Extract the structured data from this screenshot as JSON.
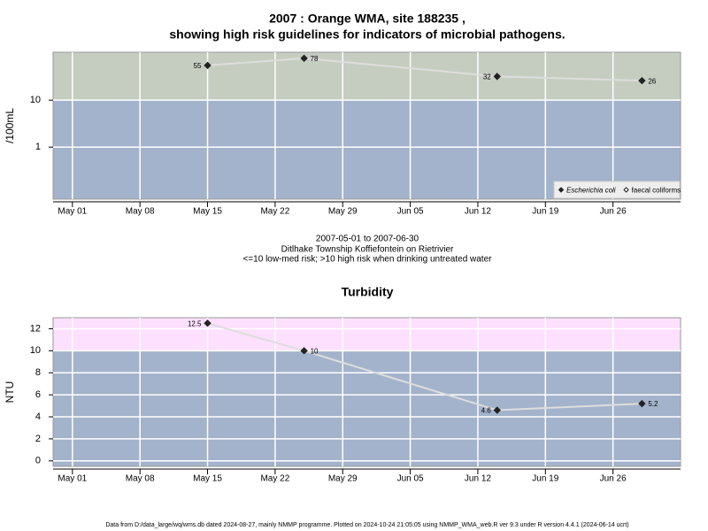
{
  "title": [
    "2007 : Orange WMA, site 188235 ,",
    "showing high risk guidelines for indicators of microbial pathogens."
  ],
  "notes": [
    "2007-05-01 to 2007-06-30",
    "Ditlhake Township Koffiefontein on Rietrivier",
    "<=10 low-med risk; >10 high risk when drinking untreated water"
  ],
  "footer": "Data from D:/data_large/wq/wms.db dated 2024-08-27, mainly NMMP programme. Plotted on 2024-10-24 21:05:05 using NMMP_WMA_web.R ver 9.3 under R version 4.4.1 (2024-06-14 ucrt)",
  "chart_data": [
    {
      "type": "line",
      "ylabel": "/100mL",
      "log_scale": true,
      "x": [
        "2007-05-15",
        "2007-05-25",
        "2007-06-14",
        "2007-06-29"
      ],
      "xlim": [
        "2007-04-29",
        "2007-07-03"
      ],
      "xticks": [
        {
          "value": "2007-05-01",
          "label": "May 01"
        },
        {
          "value": "2007-05-08",
          "label": "May 08"
        },
        {
          "value": "2007-05-15",
          "label": "May 15"
        },
        {
          "value": "2007-05-22",
          "label": "May 22"
        },
        {
          "value": "2007-05-29",
          "label": "May 29"
        },
        {
          "value": "2007-06-05",
          "label": "Jun 05"
        },
        {
          "value": "2007-06-12",
          "label": "Jun 12"
        },
        {
          "value": "2007-06-19",
          "label": "Jun 19"
        },
        {
          "value": "2007-06-26",
          "label": "Jun 26"
        }
      ],
      "ylim": [
        0.078,
        105
      ],
      "yticks": [
        1,
        10
      ],
      "grid": true,
      "threshold": 10,
      "band_colors": {
        "low": "#a3b3cb",
        "high": "#c5cdc1"
      },
      "line_color": "#dddddd",
      "legend": "bottom-right",
      "series": [
        {
          "name": "Escherichia coli",
          "color": "#222222",
          "marker": "filled",
          "values": [
            55,
            78,
            32,
            26
          ]
        },
        {
          "name": "faecal coliforms",
          "color": "#222222",
          "marker": "open",
          "values": [
            null,
            null,
            null,
            null
          ]
        }
      ]
    },
    {
      "type": "line",
      "title": "Turbidity",
      "ylabel": "NTU",
      "x": [
        "2007-05-15",
        "2007-05-25",
        "2007-06-14",
        "2007-06-29"
      ],
      "xlim": [
        "2007-04-29",
        "2007-07-03"
      ],
      "xticks": [
        {
          "value": "2007-05-01",
          "label": "May 01"
        },
        {
          "value": "2007-05-08",
          "label": "May 08"
        },
        {
          "value": "2007-05-15",
          "label": "May 15"
        },
        {
          "value": "2007-05-22",
          "label": "May 22"
        },
        {
          "value": "2007-05-29",
          "label": "May 29"
        },
        {
          "value": "2007-06-05",
          "label": "Jun 05"
        },
        {
          "value": "2007-06-12",
          "label": "Jun 12"
        },
        {
          "value": "2007-06-19",
          "label": "Jun 19"
        },
        {
          "value": "2007-06-26",
          "label": "Jun 26"
        }
      ],
      "ylim": [
        -0.5,
        13
      ],
      "yticks": [
        0,
        2,
        4,
        6,
        8,
        10,
        12
      ],
      "grid": true,
      "threshold": 10,
      "band_colors": {
        "low": "#a3b3cb",
        "high": "#fde0fd"
      },
      "line_color": "#dddddd",
      "series": [
        {
          "name": "Turbidity",
          "color": "#222222",
          "marker": "filled",
          "values": [
            12.5,
            10,
            4.6,
            5.2
          ]
        }
      ]
    }
  ]
}
